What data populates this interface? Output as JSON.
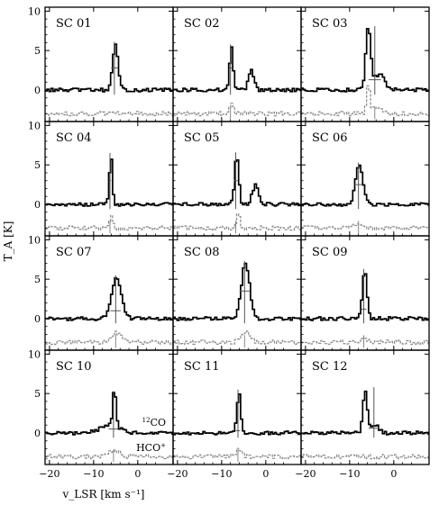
{
  "chart_data": {
    "type": "line",
    "layout": {
      "rows": 4,
      "cols": 3
    },
    "xlabel": "v_LSR [km s⁻¹]",
    "ylabel": "T_A [K]",
    "xlim": [
      -21,
      8
    ],
    "ylim": [
      -4,
      10.5
    ],
    "x_ticks": [
      -20,
      -10,
      0
    ],
    "y_ticks": [
      0,
      5,
      10
    ],
    "x_tick_labels": [
      "−20",
      "−10",
      "0"
    ],
    "y_tick_labels": [
      "0",
      "5",
      "10"
    ],
    "series": [
      {
        "name": "12CO",
        "label_main": "12",
        "label_suffix": "CO",
        "color": "#000000"
      },
      {
        "name": "HCO+",
        "label_main": "HCO",
        "label_suffix": "+",
        "color": "#888888"
      }
    ],
    "hco_offset": -3,
    "panels": [
      {
        "id": "SC 01",
        "co": [
          {
            "center": -5.3,
            "amp": 5.8,
            "fwhm": 1.4
          }
        ],
        "hco": [],
        "marker": {
          "v": -5.3,
          "t": 2.8,
          "dv": 1.5
        }
      },
      {
        "id": "SC 02",
        "co": [
          {
            "center": -8.0,
            "amp": 5.5,
            "fwhm": 0.9
          },
          {
            "center": -3.5,
            "amp": 2.5,
            "fwhm": 1.4
          }
        ],
        "hco": [
          {
            "center": -8.0,
            "amp": 1.5,
            "fwhm": 0.9
          }
        ],
        "marker": {
          "v": -8.0,
          "t": 2.8,
          "dv": 0.6
        }
      },
      {
        "id": "SC 03",
        "co": [
          {
            "center": -6.0,
            "amp": 7.8,
            "fwhm": 1.3
          },
          {
            "center": -3.5,
            "amp": 2.0,
            "fwhm": 2.8
          }
        ],
        "hco": [
          {
            "center": -6.0,
            "amp": 3.5,
            "fwhm": 1.0
          },
          {
            "center": -4.0,
            "amp": 0.8,
            "fwhm": 2.0
          }
        ],
        "marker": {
          "v": -4.3,
          "t": 1.3,
          "dv": 2.8
        }
      },
      {
        "id": "SC 04",
        "co": [
          {
            "center": -6.3,
            "amp": 6.2,
            "fwhm": 0.8
          }
        ],
        "hco": [
          {
            "center": -6.3,
            "amp": 1.5,
            "fwhm": 0.8
          }
        ],
        "marker": {
          "v": -6.3,
          "t": 3.0,
          "dv": 0.5
        }
      },
      {
        "id": "SC 05",
        "co": [
          {
            "center": -6.8,
            "amp": 6.3,
            "fwhm": 1.1
          },
          {
            "center": -2.5,
            "amp": 2.5,
            "fwhm": 1.7
          }
        ],
        "hco": [
          {
            "center": -6.5,
            "amp": 2.0,
            "fwhm": 0.8
          }
        ],
        "marker": {
          "v": -6.8,
          "t": 3.0,
          "dv": 0.8
        }
      },
      {
        "id": "SC 06",
        "co": [
          {
            "center": -8.0,
            "amp": 5.0,
            "fwhm": 2.0
          }
        ],
        "hco": [
          {
            "center": -8.0,
            "amp": 0.5,
            "fwhm": 2.5
          }
        ],
        "marker": {
          "v": -8.0,
          "t": 2.5,
          "dv": 1.7
        }
      },
      {
        "id": "SC 07",
        "co": [
          {
            "center": -5.0,
            "amp": 5.2,
            "fwhm": 2.6
          }
        ],
        "hco": [
          {
            "center": -5.0,
            "amp": 1.2,
            "fwhm": 3.0
          }
        ],
        "marker": {
          "v": -5.0,
          "t": 1.0,
          "dv": 2.3
        }
      },
      {
        "id": "SC 08",
        "co": [
          {
            "center": -4.8,
            "amp": 7.0,
            "fwhm": 2.2
          }
        ],
        "hco": [
          {
            "center": -4.8,
            "amp": 1.4,
            "fwhm": 2.5
          }
        ],
        "marker": {
          "v": -4.8,
          "t": 3.5,
          "dv": 2.3
        }
      },
      {
        "id": "SC 09",
        "co": [
          {
            "center": -6.8,
            "amp": 6.0,
            "fwhm": 1.2
          }
        ],
        "hco": [
          {
            "center": -6.8,
            "amp": 0.4,
            "fwhm": 2.0
          }
        ],
        "marker": {
          "v": -6.8,
          "t": 1.2,
          "dv": 1.2
        }
      },
      {
        "id": "SC 10",
        "co": [
          {
            "center": -5.5,
            "amp": 5.0,
            "fwhm": 0.8
          },
          {
            "center": -6.5,
            "amp": 1.0,
            "fwhm": 5.0
          }
        ],
        "hco": [
          {
            "center": -5.5,
            "amp": 0.8,
            "fwhm": 3.0
          }
        ],
        "marker": {
          "v": -5.5,
          "t": 0.5,
          "dv": 2.2
        },
        "show_legend": true
      },
      {
        "id": "SC 11",
        "co": [
          {
            "center": -6.3,
            "amp": 5.2,
            "fwhm": 1.0
          }
        ],
        "hco": [
          {
            "center": -6.3,
            "amp": 0.9,
            "fwhm": 1.5
          }
        ],
        "marker": {
          "v": -6.3,
          "t": 0.3,
          "dv": 1.0
        }
      },
      {
        "id": "SC 12",
        "co": [
          {
            "center": -6.7,
            "amp": 5.5,
            "fwhm": 1.1
          },
          {
            "center": -4.5,
            "amp": 1.0,
            "fwhm": 2.0
          }
        ],
        "hco": [],
        "marker": {
          "v": -4.5,
          "t": 0.6,
          "dv": 2.4
        }
      }
    ]
  }
}
